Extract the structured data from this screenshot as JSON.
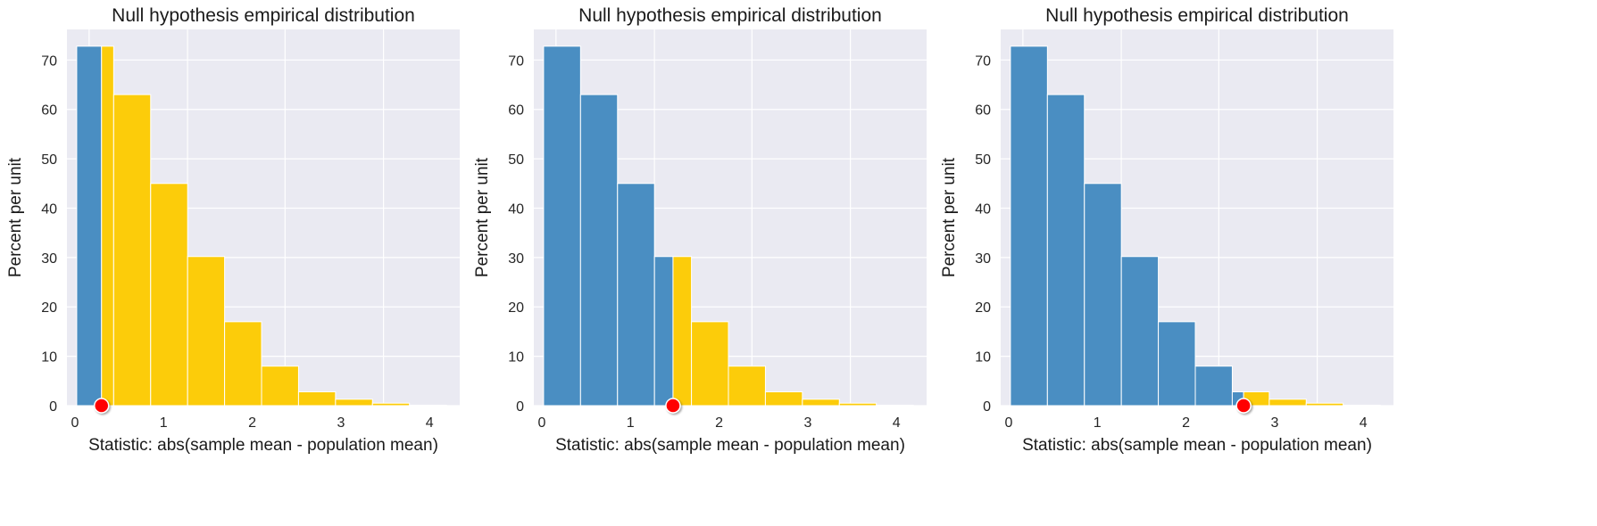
{
  "colors": {
    "background": "#eaeaf2",
    "grid": "#ffffff",
    "below": "#4a8ec2",
    "above": "#fccc0a",
    "marker": "#ff0000"
  },
  "chart_data": [
    {
      "type": "bar",
      "title": "Null hypothesis empirical distribution",
      "xlabel": "Statistic: abs(sample mean - population mean)",
      "ylabel": "Percent per unit",
      "bin_edges": [
        0.02,
        0.437,
        0.854,
        1.271,
        1.688,
        2.105,
        2.522,
        2.939,
        3.356,
        3.773,
        4.19
      ],
      "values": [
        72.8,
        63,
        45,
        30.2,
        17,
        8,
        2.8,
        1.3,
        0.5,
        0.1
      ],
      "statistic": 0.3,
      "xlim": [
        -0.09,
        4.34
      ],
      "ylim": [
        0,
        76.2
      ],
      "xticks": [
        0,
        1,
        2,
        3,
        4
      ],
      "yticks": [
        0,
        10,
        20,
        30,
        40,
        50,
        60,
        70
      ],
      "grid": true
    },
    {
      "type": "bar",
      "title": "Null hypothesis empirical distribution",
      "xlabel": "Statistic: abs(sample mean - population mean)",
      "ylabel": "Percent per unit",
      "bin_edges": [
        0.02,
        0.437,
        0.854,
        1.271,
        1.688,
        2.105,
        2.522,
        2.939,
        3.356,
        3.773,
        4.19
      ],
      "values": [
        72.8,
        63,
        45,
        30.2,
        17,
        8,
        2.8,
        1.3,
        0.5,
        0.1
      ],
      "statistic": 1.48,
      "xlim": [
        -0.09,
        4.34
      ],
      "ylim": [
        0,
        76.2
      ],
      "xticks": [
        0,
        1,
        2,
        3,
        4
      ],
      "yticks": [
        0,
        10,
        20,
        30,
        40,
        50,
        60,
        70
      ],
      "grid": true
    },
    {
      "type": "bar",
      "title": "Null hypothesis empirical distribution",
      "xlabel": "Statistic: abs(sample mean - population mean)",
      "ylabel": "Percent per unit",
      "bin_edges": [
        0.02,
        0.437,
        0.854,
        1.271,
        1.688,
        2.105,
        2.522,
        2.939,
        3.356,
        3.773,
        4.19
      ],
      "values": [
        72.8,
        63,
        45,
        30.2,
        17,
        8,
        2.8,
        1.3,
        0.5,
        0.1
      ],
      "statistic": 2.65,
      "xlim": [
        -0.09,
        4.34
      ],
      "ylim": [
        0,
        76.2
      ],
      "xticks": [
        0,
        1,
        2,
        3,
        4
      ],
      "yticks": [
        0,
        10,
        20,
        30,
        40,
        50,
        60,
        70
      ],
      "grid": true
    }
  ]
}
